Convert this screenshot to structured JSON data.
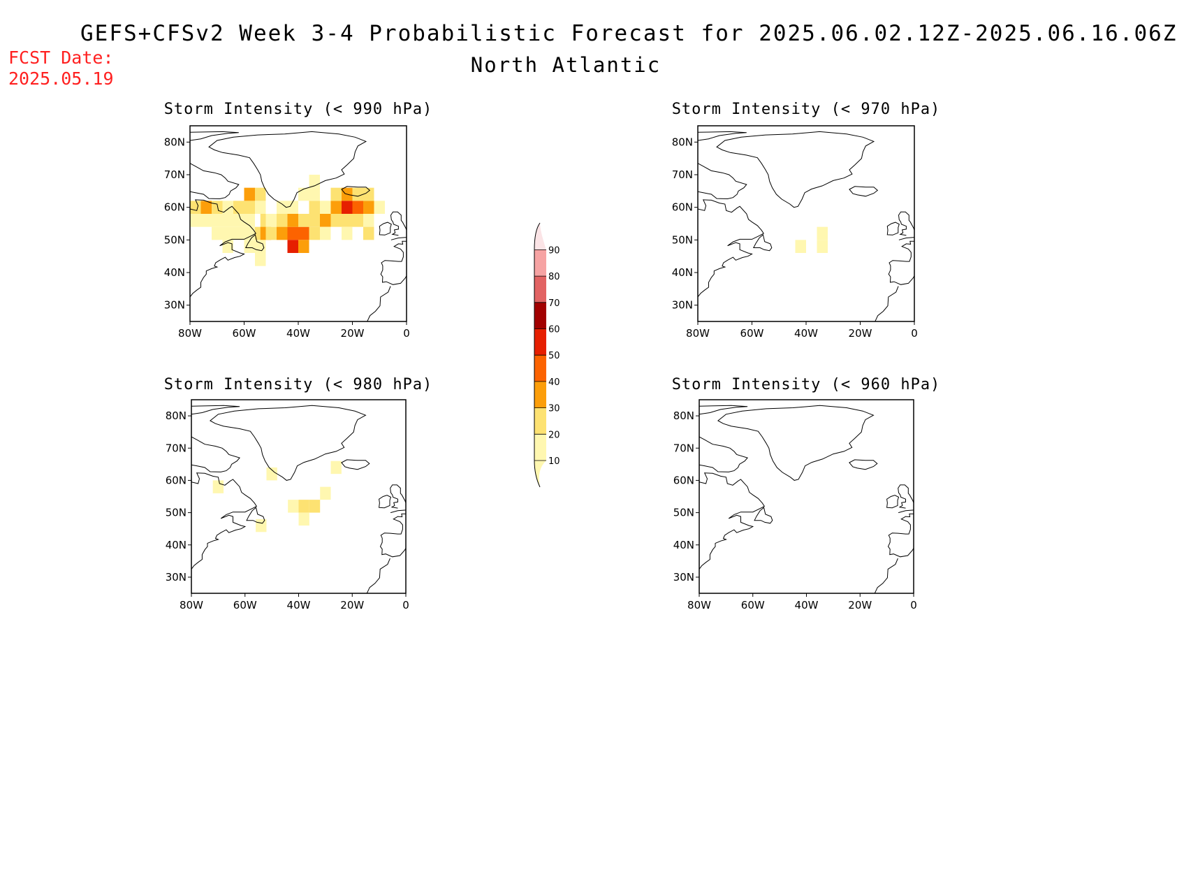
{
  "header": {
    "title": "GEFS+CFSv2 Week 3-4 Probabilistic Forecast for 2025.06.02.12Z-2025.06.16.06Z",
    "region": "North Atlantic",
    "fcst_label": "FCST Date:",
    "fcst_date": "2025.05.19"
  },
  "colors": {
    "title": "#000000",
    "fcst_date": "#ff2020"
  },
  "colorbar": {
    "levels": [
      10,
      20,
      30,
      40,
      50,
      60,
      70,
      80,
      90
    ],
    "colors": [
      "#fff7b0",
      "#fde272",
      "#fc9e0a",
      "#fc6300",
      "#e61f00",
      "#a20000",
      "#e26363",
      "#f6a3a3",
      "#fbe4e6"
    ]
  },
  "map_axes": {
    "lon_labels": [
      "80W",
      "60W",
      "40W",
      "20W",
      "0"
    ],
    "lat_labels": [
      "30N",
      "40N",
      "50N",
      "60N",
      "70N",
      "80N"
    ],
    "lon_range": [
      -80,
      0
    ],
    "lat_range": [
      25,
      85
    ]
  },
  "panels": [
    {
      "title": "Storm Intensity (< 990 hPa)",
      "cells": [
        {
          "lon": -78,
          "lat": 60,
          "p": 25
        },
        {
          "lon": -74,
          "lat": 60,
          "p": 35
        },
        {
          "lon": -70,
          "lat": 60,
          "p": 20
        },
        {
          "lon": -78,
          "lat": 56,
          "p": 15
        },
        {
          "lon": -74,
          "lat": 56,
          "p": 10
        },
        {
          "lon": -70,
          "lat": 56,
          "p": 15
        },
        {
          "lon": -66,
          "lat": 56,
          "p": 10
        },
        {
          "lon": -62,
          "lat": 56,
          "p": 10
        },
        {
          "lon": -58,
          "lat": 56,
          "p": 15
        },
        {
          "lon": -70,
          "lat": 52,
          "p": 10
        },
        {
          "lon": -66,
          "lat": 52,
          "p": 10
        },
        {
          "lon": -62,
          "lat": 52,
          "p": 10
        },
        {
          "lon": -58,
          "lat": 52,
          "p": 15
        },
        {
          "lon": -54,
          "lat": 52,
          "p": 20
        },
        {
          "lon": -66,
          "lat": 60,
          "p": 15
        },
        {
          "lon": -62,
          "lat": 60,
          "p": 20
        },
        {
          "lon": -58,
          "lat": 60,
          "p": 25
        },
        {
          "lon": -54,
          "lat": 60,
          "p": 15
        },
        {
          "lon": -58,
          "lat": 64,
          "p": 30
        },
        {
          "lon": -54,
          "lat": 64,
          "p": 25
        },
        {
          "lon": -52,
          "lat": 56,
          "p": 20
        },
        {
          "lon": -52,
          "lat": 52,
          "p": 30
        },
        {
          "lon": -50,
          "lat": 52,
          "p": 20
        },
        {
          "lon": -50,
          "lat": 56,
          "p": 15
        },
        {
          "lon": -48,
          "lat": 56,
          "p": 15
        },
        {
          "lon": -46,
          "lat": 56,
          "p": 25
        },
        {
          "lon": -46,
          "lat": 52,
          "p": 35
        },
        {
          "lon": -42,
          "lat": 52,
          "p": 45
        },
        {
          "lon": -42,
          "lat": 48,
          "p": 50
        },
        {
          "lon": -38,
          "lat": 52,
          "p": 40
        },
        {
          "lon": -38,
          "lat": 48,
          "p": 30
        },
        {
          "lon": -34,
          "lat": 52,
          "p": 25
        },
        {
          "lon": -42,
          "lat": 56,
          "p": 30
        },
        {
          "lon": -38,
          "lat": 56,
          "p": 20
        },
        {
          "lon": -34,
          "lat": 56,
          "p": 20
        },
        {
          "lon": -30,
          "lat": 56,
          "p": 30
        },
        {
          "lon": -26,
          "lat": 56,
          "p": 20
        },
        {
          "lon": -22,
          "lat": 56,
          "p": 20
        },
        {
          "lon": -18,
          "lat": 56,
          "p": 25
        },
        {
          "lon": -14,
          "lat": 56,
          "p": 15
        },
        {
          "lon": -30,
          "lat": 52,
          "p": 15
        },
        {
          "lon": -22,
          "lat": 52,
          "p": 15
        },
        {
          "lon": -14,
          "lat": 52,
          "p": 20
        },
        {
          "lon": -34,
          "lat": 60,
          "p": 25
        },
        {
          "lon": -30,
          "lat": 60,
          "p": 15
        },
        {
          "lon": -26,
          "lat": 60,
          "p": 35
        },
        {
          "lon": -22,
          "lat": 60,
          "p": 50
        },
        {
          "lon": -18,
          "lat": 60,
          "p": 40
        },
        {
          "lon": -14,
          "lat": 60,
          "p": 30
        },
        {
          "lon": -10,
          "lat": 60,
          "p": 15
        },
        {
          "lon": -26,
          "lat": 64,
          "p": 25
        },
        {
          "lon": -22,
          "lat": 64,
          "p": 30
        },
        {
          "lon": -18,
          "lat": 64,
          "p": 25
        },
        {
          "lon": -14,
          "lat": 64,
          "p": 20
        },
        {
          "lon": -34,
          "lat": 64,
          "p": 15
        },
        {
          "lon": -38,
          "lat": 64,
          "p": 10
        },
        {
          "lon": -34,
          "lat": 68,
          "p": 10
        },
        {
          "lon": -42,
          "lat": 60,
          "p": 15
        },
        {
          "lon": -46,
          "lat": 60,
          "p": 10
        },
        {
          "lon": -58,
          "lat": 48,
          "p": 15
        },
        {
          "lon": -54,
          "lat": 48,
          "p": 10
        },
        {
          "lon": -54,
          "lat": 44,
          "p": 15
        },
        {
          "lon": -66,
          "lat": 48,
          "p": 10
        }
      ]
    },
    {
      "title": "Storm Intensity (< 970 hPa)",
      "cells": [
        {
          "lon": -34,
          "lat": 52,
          "p": 15
        },
        {
          "lon": -34,
          "lat": 48,
          "p": 10
        },
        {
          "lon": -42,
          "lat": 48,
          "p": 15
        }
      ]
    },
    {
      "title": "Storm Intensity (< 980 hPa)",
      "cells": [
        {
          "lon": -42,
          "lat": 52,
          "p": 15
        },
        {
          "lon": -38,
          "lat": 52,
          "p": 20
        },
        {
          "lon": -34,
          "lat": 52,
          "p": 25
        },
        {
          "lon": -30,
          "lat": 56,
          "p": 15
        },
        {
          "lon": -38,
          "lat": 48,
          "p": 10
        },
        {
          "lon": -54,
          "lat": 46,
          "p": 10
        },
        {
          "lon": -26,
          "lat": 64,
          "p": 10
        },
        {
          "lon": -50,
          "lat": 62,
          "p": 10
        },
        {
          "lon": -70,
          "lat": 58,
          "p": 10
        }
      ]
    },
    {
      "title": "Storm Intensity (< 960 hPa)",
      "cells": []
    }
  ]
}
